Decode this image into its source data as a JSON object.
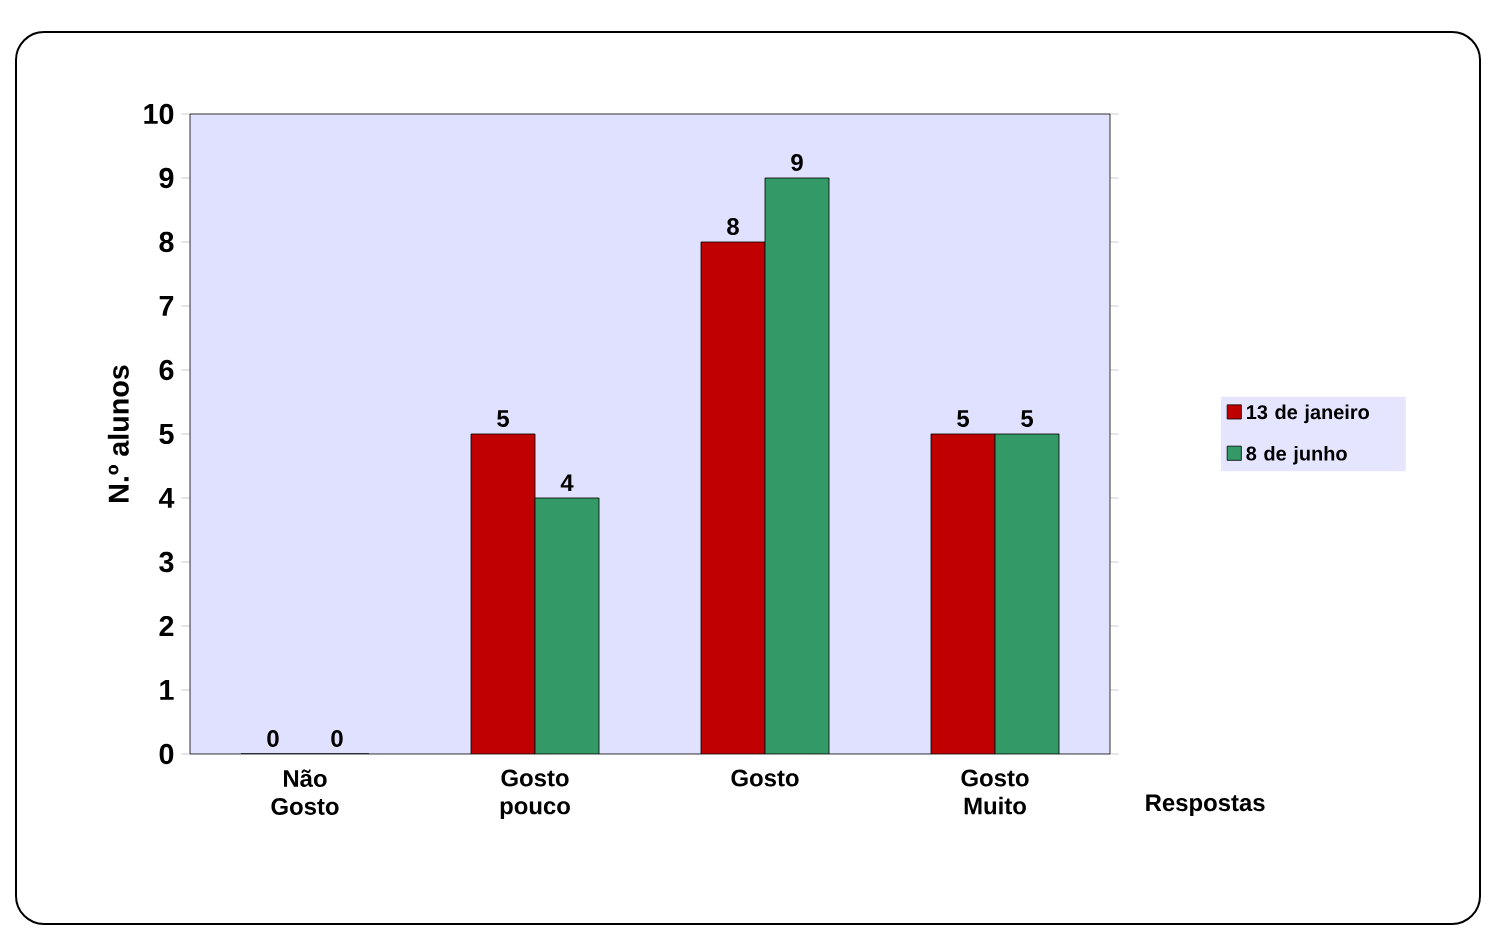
{
  "chart_data": {
    "type": "bar",
    "xlabel": "Respostas",
    "ylabel": "N.º alunos",
    "categories": [
      "Não Gosto",
      "Gosto pouco",
      "Gosto",
      "Gosto Muito"
    ],
    "series": [
      {
        "name": "13 de janeiro",
        "color": "#c00000",
        "values": [
          0,
          5,
          8,
          5
        ]
      },
      {
        "name": "8 de junho",
        "color": "#339966",
        "values": [
          0,
          4,
          9,
          5
        ]
      }
    ],
    "ylim": [
      0,
      10
    ],
    "yticks": [
      0,
      1,
      2,
      3,
      4,
      5,
      6,
      7,
      8,
      9,
      10
    ],
    "data_labels": true,
    "legend": "right",
    "grid": false
  }
}
